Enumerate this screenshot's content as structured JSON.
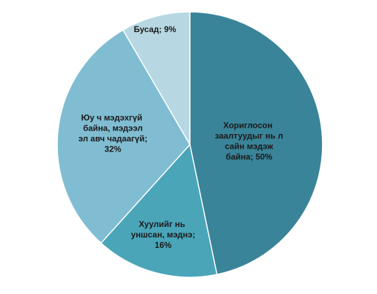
{
  "chart_data": {
    "type": "pie",
    "labels": [
      "Хориглосон заалтуудыг нь л сайн мэдэж байна; 50%",
      "Хуулийг нь уншсан, мэднэ; 16%",
      "Юу ч мэдэхгүй байна, мэдээл эл авч чадаагүй; 32%",
      "Бусад; 9%"
    ],
    "values": [
      50,
      16,
      32,
      9
    ],
    "colors": [
      "#3a8499",
      "#4aa5b9",
      "#80bdd2",
      "#b7d8e3"
    ]
  }
}
